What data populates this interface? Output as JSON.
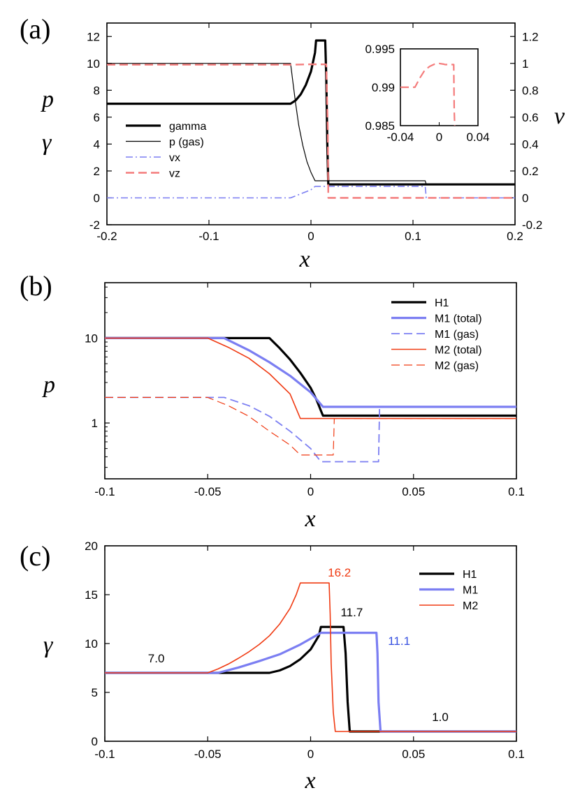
{
  "colors": {
    "black": "#000000",
    "blue": "#7b7ef2",
    "red": "#f03a12",
    "pink": "#f47c7c"
  },
  "chart_data": [
    {
      "id": "a",
      "type": "line",
      "panel_label": "(a)",
      "xlabel": "x",
      "ylabel_left": [
        "p",
        "γ"
      ],
      "ylabel_right": "v",
      "xlim": [
        -0.2,
        0.2
      ],
      "ylim_left": [
        -2,
        13
      ],
      "ylim_right": [
        -0.2,
        1.3
      ],
      "xticks": [
        "-0.2",
        "-0.1",
        "0",
        "0.1",
        "0.2"
      ],
      "yticks_left": [
        "-2",
        "0",
        "2",
        "4",
        "6",
        "8",
        "10",
        "12"
      ],
      "yticks_right": [
        "-0.2",
        "0",
        "0.2",
        "0.4",
        "0.6",
        "0.8",
        "1",
        "1.2"
      ],
      "legend": [
        "gamma",
        "p (gas)",
        "vx",
        "vz"
      ],
      "series": [
        {
          "name": "gamma",
          "axis": "left",
          "color": "#000000",
          "style": "solid",
          "width": 3.2,
          "x": [
            -0.2,
            -0.02,
            -0.015,
            -0.01,
            -0.005,
            0.0,
            0.004,
            0.005,
            0.014,
            0.015,
            0.016,
            0.017,
            0.2
          ],
          "y": [
            7.0,
            7.0,
            7.25,
            7.7,
            8.4,
            9.4,
            10.8,
            11.7,
            11.7,
            9.0,
            4.0,
            1.0,
            1.0
          ]
        },
        {
          "name": "p (gas)",
          "axis": "left",
          "color": "#000000",
          "style": "solid",
          "width": 1.2,
          "x": [
            -0.2,
            -0.02,
            -0.018,
            -0.015,
            -0.012,
            -0.008,
            -0.004,
            0.0,
            0.004,
            0.112,
            0.113,
            0.2
          ],
          "y": [
            10.0,
            10.0,
            8.8,
            7.0,
            5.4,
            3.9,
            2.7,
            1.9,
            1.27,
            1.27,
            1.0,
            1.0
          ]
        },
        {
          "name": "vx",
          "axis": "right",
          "color": "#7b7ef2",
          "style": "dashdot",
          "width": 1.6,
          "x": [
            -0.2,
            -0.02,
            0.0,
            0.004,
            0.112,
            0.113,
            0.2
          ],
          "y": [
            0.0,
            0.0,
            0.06,
            0.085,
            0.085,
            0.0,
            0.0
          ]
        },
        {
          "name": "vz",
          "axis": "right",
          "color": "#f47c7c",
          "style": "dashed",
          "width": 2.4,
          "x": [
            -0.2,
            -0.02,
            -0.01,
            0.0,
            0.015,
            0.0165,
            0.017,
            0.2
          ],
          "y": [
            0.99,
            0.99,
            0.9915,
            0.993,
            0.9925,
            0.5,
            0.0,
            0.0
          ]
        }
      ],
      "inset": {
        "xlim": [
          -0.04,
          0.04
        ],
        "ylim": [
          0.985,
          0.995
        ],
        "xticks": [
          "-0.04",
          "0",
          "0.04"
        ],
        "yticks": [
          "0.985",
          "0.99",
          "0.995"
        ],
        "series": {
          "name": "vz",
          "color": "#f47c7c",
          "x": [
            -0.04,
            -0.025,
            -0.02,
            -0.015,
            -0.01,
            -0.005,
            0.0,
            0.005,
            0.006,
            0.015,
            0.0155,
            0.016
          ],
          "y": [
            0.99,
            0.99,
            0.9912,
            0.9922,
            0.9927,
            0.993,
            0.9931,
            0.993,
            0.99295,
            0.99295,
            0.987,
            0.985
          ]
        }
      }
    },
    {
      "id": "b",
      "type": "line",
      "panel_label": "(b)",
      "xlabel": "x",
      "ylabel": "p",
      "xlim": [
        -0.1,
        0.1
      ],
      "yscale": "log",
      "ylim": [
        0.22,
        45
      ],
      "xticks": [
        "-0.1",
        "-0.05",
        "0",
        "0.05",
        "0.1"
      ],
      "yticks": [
        "1",
        "10"
      ],
      "legend": [
        "H1",
        "M1 (total)",
        "M1 (gas)",
        "M2 (total)",
        "M2 (gas)"
      ],
      "series": [
        {
          "name": "H1",
          "color": "#000000",
          "style": "solid",
          "width": 3.2,
          "x": [
            -0.1,
            -0.02,
            -0.015,
            -0.01,
            -0.005,
            0.0,
            0.003,
            0.005,
            0.006,
            0.1
          ],
          "y": [
            10.0,
            10.0,
            7.6,
            5.6,
            3.9,
            2.6,
            1.85,
            1.4,
            1.22,
            1.22
          ]
        },
        {
          "name": "M1 (total)",
          "color": "#7b7ef2",
          "style": "solid",
          "width": 3.2,
          "x": [
            -0.1,
            -0.042,
            -0.03,
            -0.02,
            -0.01,
            0.0,
            0.006,
            0.1
          ],
          "y": [
            10.0,
            10.0,
            7.2,
            5.2,
            3.6,
            2.3,
            1.55,
            1.55
          ]
        },
        {
          "name": "M1 (gas)",
          "color": "#7b7ef2",
          "style": "dashed",
          "width": 1.8,
          "x": [
            -0.1,
            -0.042,
            -0.03,
            -0.02,
            -0.01,
            0.0,
            0.005,
            0.033,
            0.0335,
            0.1
          ],
          "y": [
            2.0,
            2.0,
            1.6,
            1.2,
            0.8,
            0.5,
            0.35,
            0.35,
            1.55,
            1.55
          ]
        },
        {
          "name": "M2 (total)",
          "color": "#f03a12",
          "style": "solid",
          "width": 1.6,
          "x": [
            -0.1,
            -0.05,
            -0.04,
            -0.03,
            -0.02,
            -0.01,
            -0.005,
            0.1
          ],
          "y": [
            10.0,
            10.0,
            7.8,
            5.8,
            3.8,
            2.2,
            1.13,
            1.13
          ]
        },
        {
          "name": "M2 (gas)",
          "color": "#f03a12",
          "style": "dashed",
          "width": 1.2,
          "x": [
            -0.1,
            -0.05,
            -0.04,
            -0.03,
            -0.02,
            -0.01,
            -0.005,
            0.011,
            0.0115,
            0.1
          ],
          "y": [
            2.0,
            2.0,
            1.6,
            1.2,
            0.8,
            0.55,
            0.42,
            0.42,
            1.13,
            1.13
          ]
        }
      ]
    },
    {
      "id": "c",
      "type": "line",
      "panel_label": "(c)",
      "xlabel": "x",
      "ylabel": "γ",
      "xlim": [
        -0.1,
        0.1
      ],
      "ylim": [
        0,
        20
      ],
      "xticks": [
        "-0.1",
        "-0.05",
        "0",
        "0.05",
        "0.1"
      ],
      "yticks": [
        "0",
        "5",
        "10",
        "15",
        "20"
      ],
      "legend": [
        "H1",
        "M1",
        "M2"
      ],
      "annotations": [
        {
          "text": "16.2",
          "color": "#f03a12",
          "x": 0.014,
          "y": 17.3
        },
        {
          "text": "11.7",
          "color": "#000000",
          "x": 0.02,
          "y": 13.2
        },
        {
          "text": "11.1",
          "color": "#3650e0",
          "x": 0.043,
          "y": 10.3
        },
        {
          "text": "7.0",
          "color": "#000000",
          "x": -0.075,
          "y": 8.5
        },
        {
          "text": "1.0",
          "color": "#000000",
          "x": 0.063,
          "y": 2.5
        }
      ],
      "series": [
        {
          "name": "H1",
          "color": "#000000",
          "style": "solid",
          "width": 3.2,
          "x": [
            -0.1,
            -0.02,
            -0.015,
            -0.01,
            -0.005,
            0.0,
            0.004,
            0.005,
            0.016,
            0.017,
            0.018,
            0.019,
            0.1
          ],
          "y": [
            7.0,
            7.0,
            7.25,
            7.7,
            8.4,
            9.4,
            10.8,
            11.7,
            11.7,
            9.0,
            4.0,
            1.0,
            1.0
          ]
        },
        {
          "name": "M1",
          "color": "#7b7ef2",
          "style": "solid",
          "width": 3.2,
          "x": [
            -0.1,
            -0.045,
            -0.035,
            -0.025,
            -0.015,
            -0.005,
            0.005,
            0.032,
            0.0325,
            0.033,
            0.034,
            0.1
          ],
          "y": [
            7.0,
            7.0,
            7.55,
            8.2,
            8.9,
            9.9,
            11.1,
            11.1,
            9.0,
            4.0,
            1.0,
            1.0
          ]
        },
        {
          "name": "M2",
          "color": "#f03a12",
          "style": "solid",
          "width": 1.6,
          "x": [
            -0.1,
            -0.05,
            -0.045,
            -0.04,
            -0.035,
            -0.03,
            -0.025,
            -0.02,
            -0.015,
            -0.01,
            -0.007,
            -0.005,
            0.009,
            0.0095,
            0.01,
            0.011,
            0.012,
            0.1
          ],
          "y": [
            7.0,
            7.0,
            7.4,
            7.9,
            8.5,
            9.15,
            9.9,
            10.8,
            12.0,
            13.6,
            15.0,
            16.2,
            16.2,
            13.0,
            8.0,
            3.0,
            1.0,
            1.0
          ]
        }
      ]
    }
  ]
}
